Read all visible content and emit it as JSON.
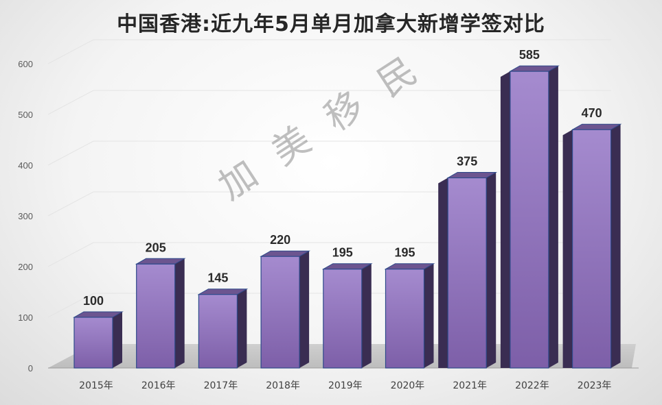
{
  "chart_data": {
    "type": "bar",
    "title": "中国香港:近九年5月单月加拿大新增学签对比",
    "categories": [
      "2015年",
      "2016年",
      "2017年",
      "2018年",
      "2019年",
      "2020年",
      "2021年",
      "2022年",
      "2023年"
    ],
    "values": [
      100,
      205,
      145,
      220,
      195,
      195,
      375,
      585,
      470
    ],
    "data_labels": [
      "100",
      "205",
      "145",
      "220",
      "195",
      "195",
      "375",
      "585",
      "470"
    ],
    "yticks": [
      "0",
      "100",
      "200",
      "300",
      "400",
      "500",
      "600"
    ],
    "ylim": [
      0,
      600
    ],
    "grid": true,
    "bar_color": "#8b6bb3",
    "bar_side_color": "#3a2d52",
    "bar_top_color": "#6c5590"
  },
  "watermark": "加美移民"
}
